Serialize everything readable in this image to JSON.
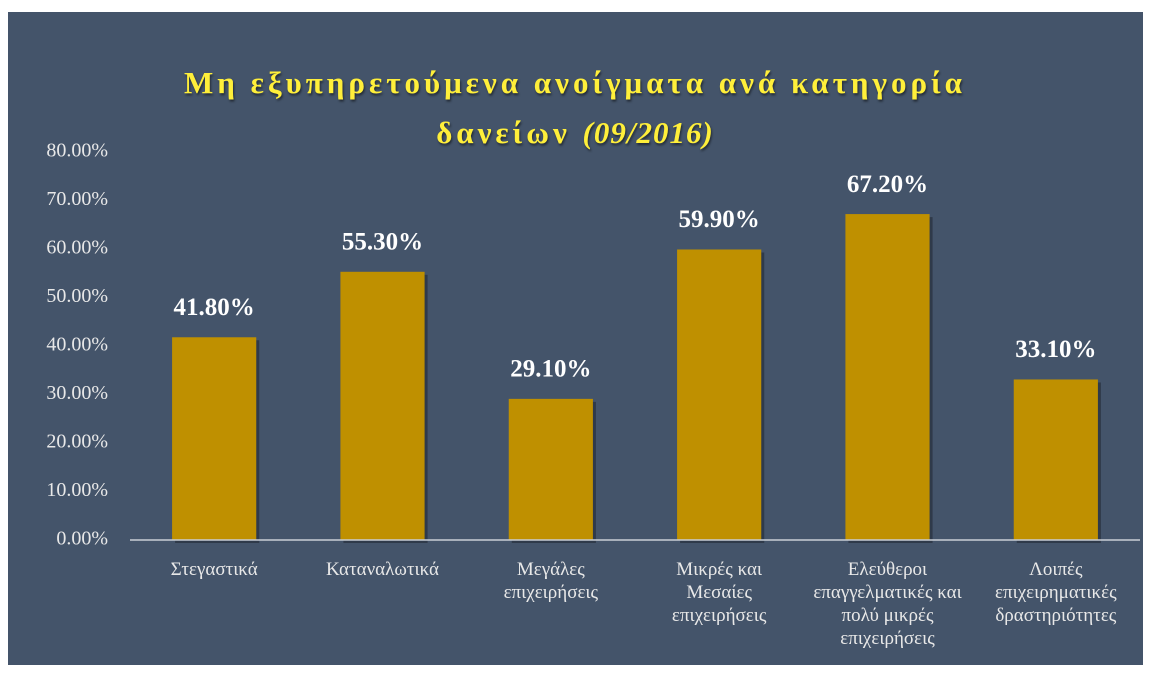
{
  "chart_data": {
    "type": "bar",
    "title": "Μη εξυπηρετούμενα ανοίγματα ανά κατηγορία δανείων",
    "title_note": "(09/2016)",
    "categories": [
      "Στεγαστικά",
      "Καταναλωτικά",
      "Μεγάλες επιχειρήσεις",
      "Μικρές και Μεσαίες επιχειρήσεις",
      "Ελεύθεροι επαγγελματικές και πολύ μικρές επιχειρήσεις",
      "Λοιπές επιχειρηματικές δραστηριότητες"
    ],
    "values": [
      41.8,
      55.3,
      29.1,
      59.9,
      67.2,
      33.1
    ],
    "value_labels": [
      "41.80%",
      "55.30%",
      "29.10%",
      "59.90%",
      "67.20%",
      "33.10%"
    ],
    "color": "#bf9000",
    "ylim": [
      0,
      80
    ],
    "yticks": [
      {
        "value": 0,
        "label": "0.00%"
      },
      {
        "value": 10,
        "label": "10.00%"
      },
      {
        "value": 20,
        "label": "20.00%"
      },
      {
        "value": 30,
        "label": "30.00%"
      },
      {
        "value": 40,
        "label": "40.00%"
      },
      {
        "value": 50,
        "label": "50.00%"
      },
      {
        "value": 60,
        "label": "60.00%"
      },
      {
        "value": 70,
        "label": "70.00%"
      },
      {
        "value": 80,
        "label": "80.00%"
      }
    ],
    "grid": false
  }
}
